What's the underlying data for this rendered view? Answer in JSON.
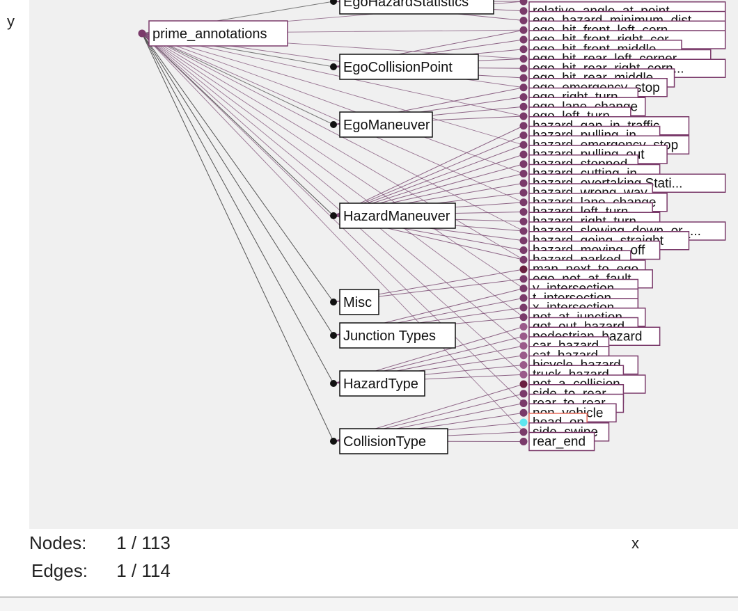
{
  "axes": {
    "x_label": "x",
    "y_label": "y"
  },
  "stats": {
    "nodes_label": "Nodes:",
    "nodes_value": "1 / 113",
    "edges_label": "Edges:",
    "edges_value": "1 / 114"
  },
  "colors": {
    "plot_bg": "#f0f0f0",
    "leaf_node": "#7a3a6a",
    "leaf_dark": "#6a2040",
    "leaf_light": "#9a5a8a",
    "category_node": "#111111",
    "edge": "#7a4a72",
    "highlight_node": "#5ee6f0",
    "highlight_border": "#e86a5a"
  },
  "graph": {
    "root": {
      "label": "prime_annotations"
    },
    "categories": [
      {
        "label": "EgoHazardStatistics"
      },
      {
        "label": "EgoCollisionPoint"
      },
      {
        "label": "EgoManeuver"
      },
      {
        "label": "HazardManeuver"
      },
      {
        "label": "Misc"
      },
      {
        "label": "Junction Types"
      },
      {
        "label": "HazardType"
      },
      {
        "label": "CollisionType"
      }
    ],
    "leaves": [
      {
        "label": "",
        "cat": 0,
        "tone": "mid"
      },
      {
        "label": "relative_angle_at_point...",
        "cat": 0,
        "tone": "mid"
      },
      {
        "label": "ego_hazard_minimum_dist...",
        "cat": 0,
        "tone": "mid"
      },
      {
        "label": "ego_hit_front_left_corn...",
        "cat": 1,
        "tone": "mid"
      },
      {
        "label": "ego_hit_front_right_cor...",
        "cat": 1,
        "tone": "mid"
      },
      {
        "label": "ego_hit_front_middle",
        "cat": 1,
        "tone": "mid"
      },
      {
        "label": "ego_hit_rear_left_corner",
        "cat": 1,
        "tone": "mid"
      },
      {
        "label": "ego_hit_rear_right_corn...",
        "cat": 1,
        "tone": "mid"
      },
      {
        "label": "ego_hit_rear_middle",
        "cat": 1,
        "tone": "mid"
      },
      {
        "label": "ego_emergency_stop",
        "cat": 2,
        "tone": "mid"
      },
      {
        "label": "ego_right_turn",
        "cat": 2,
        "tone": "mid"
      },
      {
        "label": "ego_lane_change",
        "cat": 2,
        "tone": "mid"
      },
      {
        "label": "ego_left_turn",
        "cat": 2,
        "tone": "mid"
      },
      {
        "label": "hazard_gap_in_traffic",
        "cat": 3,
        "tone": "mid"
      },
      {
        "label": "hazard_pulling_in",
        "cat": 3,
        "tone": "mid"
      },
      {
        "label": "hazard_emergency_stop",
        "cat": 3,
        "tone": "mid"
      },
      {
        "label": "hazard_pulling_out",
        "cat": 3,
        "tone": "mid"
      },
      {
        "label": "hazard_stopped",
        "cat": 3,
        "tone": "mid"
      },
      {
        "label": "hazard_cutting_in",
        "cat": 3,
        "tone": "mid"
      },
      {
        "label": "hazard_overtaking Stati...",
        "cat": 3,
        "tone": "mid"
      },
      {
        "label": "hazard_wrong_way",
        "cat": 3,
        "tone": "mid"
      },
      {
        "label": "hazard_lane_change",
        "cat": 3,
        "tone": "mid"
      },
      {
        "label": "hazard_left_turn",
        "cat": 3,
        "tone": "mid"
      },
      {
        "label": "hazard_right_turn",
        "cat": 3,
        "tone": "mid"
      },
      {
        "label": "hazard_slowing_down_or_...",
        "cat": 3,
        "tone": "mid"
      },
      {
        "label": "hazard_going_straight",
        "cat": 3,
        "tone": "mid"
      },
      {
        "label": "hazard_moving_off",
        "cat": 3,
        "tone": "mid"
      },
      {
        "label": "hazard_parked",
        "cat": 3,
        "tone": "mid"
      },
      {
        "label": "man_next_to_ego",
        "cat": 4,
        "tone": "dark"
      },
      {
        "label": "ego_not_at_fault",
        "cat": 4,
        "tone": "mid"
      },
      {
        "label": "y_intersection",
        "cat": 5,
        "tone": "mid"
      },
      {
        "label": "t_intersection",
        "cat": 5,
        "tone": "mid"
      },
      {
        "label": "x_intersection",
        "cat": 5,
        "tone": "mid"
      },
      {
        "label": "not_at_junction",
        "cat": 5,
        "tone": "mid"
      },
      {
        "label": "got_out_hazard",
        "cat": 6,
        "tone": "light"
      },
      {
        "label": "pedestrian_hazard",
        "cat": 6,
        "tone": "light"
      },
      {
        "label": "car_hazard",
        "cat": 6,
        "tone": "light"
      },
      {
        "label": "cat_hazard",
        "cat": 6,
        "tone": "light"
      },
      {
        "label": "bicycle_hazard",
        "cat": 6,
        "tone": "light"
      },
      {
        "label": "truck_hazard",
        "cat": 6,
        "tone": "light"
      },
      {
        "label": "not_a_collision",
        "cat": 7,
        "tone": "dark"
      },
      {
        "label": "side_to_rear",
        "cat": 7,
        "tone": "mid"
      },
      {
        "label": "rear_to_rear",
        "cat": 7,
        "tone": "mid"
      },
      {
        "label": "non_vehicle",
        "cat": 7,
        "tone": "mid"
      },
      {
        "label": "head_on",
        "cat": 7,
        "tone": "highlight"
      },
      {
        "label": "side_swipe",
        "cat": 7,
        "tone": "mid"
      },
      {
        "label": "rear_end",
        "cat": 7,
        "tone": "mid"
      }
    ]
  }
}
